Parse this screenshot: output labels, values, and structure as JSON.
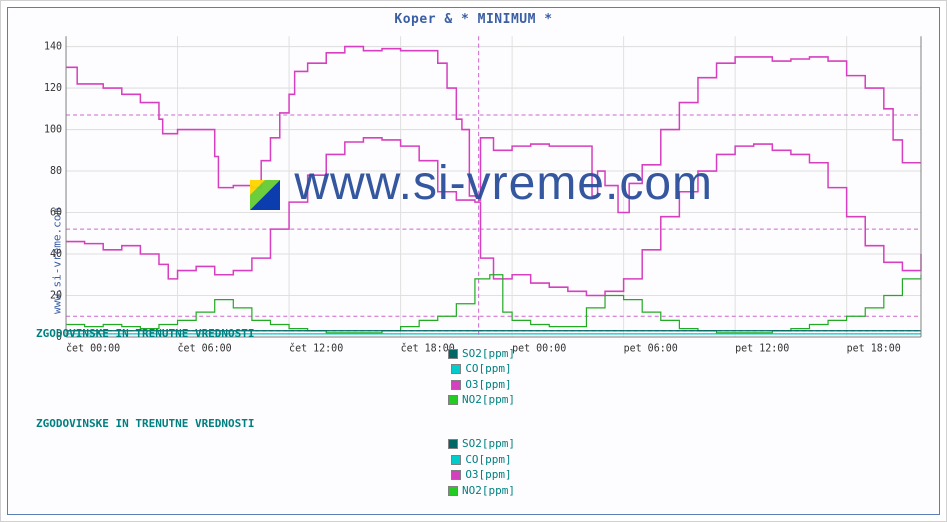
{
  "title": "Koper & * MINIMUM *",
  "yaxis_label": "www.si-vreme.com",
  "watermark": "www.si-vreme.com",
  "chart": {
    "type": "line",
    "background_color": "#ffffff",
    "border_color": "#5a7fb5",
    "grid_color": "#e0e0e0",
    "axis_color": "#808080",
    "ylim": [
      0,
      145
    ],
    "yticks": [
      0,
      20,
      40,
      60,
      80,
      100,
      120,
      140
    ],
    "xlim": [
      0,
      46
    ],
    "xticks": [
      {
        "pos": 0,
        "label": "čet 00:00"
      },
      {
        "pos": 6,
        "label": "čet 06:00"
      },
      {
        "pos": 12,
        "label": "čet 12:00"
      },
      {
        "pos": 18,
        "label": "čet 18:00"
      },
      {
        "pos": 24,
        "label": "pet 00:00"
      },
      {
        "pos": 30,
        "label": "pet 06:00"
      },
      {
        "pos": 36,
        "label": "pet 12:00"
      },
      {
        "pos": 42,
        "label": "pet 18:00"
      }
    ],
    "thresholds": [
      {
        "y": 107,
        "color": "#cc66cc",
        "dash": "4,3"
      },
      {
        "y": 52,
        "color": "#cc66cc",
        "dash": "4,3"
      },
      {
        "y": 10,
        "color": "#cc66cc",
        "dash": "4,3"
      },
      {
        "y": 3,
        "color": "#008080",
        "dash": "4,3"
      },
      {
        "y": 1.5,
        "color": "#00aaaa",
        "dash": "2,2"
      }
    ],
    "vline": {
      "x": 22.2,
      "color": "#cc66cc",
      "dash": "4,3"
    },
    "series": [
      {
        "name": "O3_upper",
        "color": "#d63fbf",
        "width": 1.5,
        "data": [
          [
            0,
            130
          ],
          [
            0.6,
            122
          ],
          [
            1,
            122
          ],
          [
            2,
            120
          ],
          [
            3,
            117
          ],
          [
            4,
            113
          ],
          [
            5,
            105
          ],
          [
            5.2,
            98
          ],
          [
            6,
            100
          ],
          [
            7,
            100
          ],
          [
            8,
            87
          ],
          [
            8.2,
            72
          ],
          [
            9,
            73
          ],
          [
            10,
            72
          ],
          [
            10.5,
            85
          ],
          [
            11,
            96
          ],
          [
            11.5,
            108
          ],
          [
            12,
            117
          ],
          [
            12.3,
            128
          ],
          [
            13,
            132
          ],
          [
            14,
            137
          ],
          [
            15,
            140
          ],
          [
            16,
            138
          ],
          [
            17,
            139
          ],
          [
            18,
            138
          ],
          [
            19,
            138
          ],
          [
            20,
            132
          ],
          [
            20.5,
            120
          ],
          [
            21,
            105
          ],
          [
            21.3,
            100
          ],
          [
            21.7,
            68
          ],
          [
            22.2,
            66
          ],
          [
            22.3,
            96
          ],
          [
            23,
            90
          ],
          [
            24,
            92
          ],
          [
            25,
            93
          ],
          [
            26,
            92
          ],
          [
            27,
            92
          ],
          [
            28,
            92
          ],
          [
            28.3,
            68
          ],
          [
            28.6,
            80
          ],
          [
            29,
            73
          ],
          [
            29.7,
            60
          ],
          [
            30.3,
            74
          ],
          [
            31,
            83
          ],
          [
            32,
            100
          ],
          [
            33,
            113
          ],
          [
            34,
            125
          ],
          [
            35,
            132
          ],
          [
            36,
            135
          ],
          [
            37,
            135
          ],
          [
            38,
            133
          ],
          [
            39,
            134
          ],
          [
            40,
            135
          ],
          [
            41,
            133
          ],
          [
            42,
            126
          ],
          [
            43,
            120
          ],
          [
            44,
            110
          ],
          [
            44.5,
            95
          ],
          [
            45,
            84
          ],
          [
            46,
            84
          ]
        ]
      },
      {
        "name": "O3_lower",
        "color": "#d63fbf",
        "width": 1.5,
        "data": [
          [
            0,
            46
          ],
          [
            1,
            45
          ],
          [
            2,
            42
          ],
          [
            3,
            44
          ],
          [
            4,
            40
          ],
          [
            5,
            35
          ],
          [
            5.5,
            28
          ],
          [
            6,
            32
          ],
          [
            7,
            34
          ],
          [
            8,
            30
          ],
          [
            9,
            32
          ],
          [
            10,
            38
          ],
          [
            11,
            52
          ],
          [
            12,
            65
          ],
          [
            13,
            78
          ],
          [
            14,
            88
          ],
          [
            15,
            94
          ],
          [
            16,
            96
          ],
          [
            17,
            95
          ],
          [
            18,
            92
          ],
          [
            19,
            85
          ],
          [
            20,
            70
          ],
          [
            21,
            66
          ],
          [
            22,
            65
          ],
          [
            22.3,
            38
          ],
          [
            23,
            28
          ],
          [
            24,
            30
          ],
          [
            25,
            26
          ],
          [
            26,
            24
          ],
          [
            27,
            22
          ],
          [
            28,
            20
          ],
          [
            29,
            22
          ],
          [
            30,
            28
          ],
          [
            31,
            42
          ],
          [
            32,
            58
          ],
          [
            33,
            70
          ],
          [
            34,
            80
          ],
          [
            35,
            88
          ],
          [
            36,
            92
          ],
          [
            37,
            93
          ],
          [
            38,
            90
          ],
          [
            39,
            88
          ],
          [
            40,
            84
          ],
          [
            41,
            72
          ],
          [
            42,
            58
          ],
          [
            43,
            44
          ],
          [
            44,
            36
          ],
          [
            45,
            32
          ],
          [
            46,
            40
          ]
        ]
      },
      {
        "name": "NO2",
        "color": "#22aa22",
        "width": 1.2,
        "data": [
          [
            0,
            6
          ],
          [
            1,
            5
          ],
          [
            2,
            6
          ],
          [
            3,
            5
          ],
          [
            4,
            4
          ],
          [
            5,
            6
          ],
          [
            6,
            8
          ],
          [
            7,
            12
          ],
          [
            8,
            18
          ],
          [
            9,
            14
          ],
          [
            10,
            8
          ],
          [
            11,
            6
          ],
          [
            12,
            4
          ],
          [
            13,
            3
          ],
          [
            14,
            2
          ],
          [
            15,
            2
          ],
          [
            16,
            2
          ],
          [
            17,
            3
          ],
          [
            18,
            5
          ],
          [
            19,
            8
          ],
          [
            20,
            10
          ],
          [
            21,
            16
          ],
          [
            22,
            28
          ],
          [
            22.8,
            30
          ],
          [
            23.5,
            12
          ],
          [
            24,
            8
          ],
          [
            25,
            6
          ],
          [
            26,
            5
          ],
          [
            27,
            5
          ],
          [
            28,
            14
          ],
          [
            29,
            20
          ],
          [
            30,
            18
          ],
          [
            31,
            12
          ],
          [
            32,
            8
          ],
          [
            33,
            4
          ],
          [
            34,
            3
          ],
          [
            35,
            2
          ],
          [
            36,
            2
          ],
          [
            37,
            2
          ],
          [
            38,
            3
          ],
          [
            39,
            4
          ],
          [
            40,
            6
          ],
          [
            41,
            8
          ],
          [
            42,
            10
          ],
          [
            43,
            14
          ],
          [
            44,
            20
          ],
          [
            45,
            28
          ],
          [
            46,
            30
          ]
        ]
      },
      {
        "name": "SO2",
        "color": "#006666",
        "width": 1.2,
        "data": [
          [
            0,
            3
          ],
          [
            4,
            3
          ],
          [
            8,
            3
          ],
          [
            12,
            3
          ],
          [
            16,
            3
          ],
          [
            20,
            3
          ],
          [
            24,
            3
          ],
          [
            28,
            3
          ],
          [
            32,
            3
          ],
          [
            36,
            3
          ],
          [
            40,
            3
          ],
          [
            44,
            3
          ],
          [
            46,
            3
          ]
        ]
      },
      {
        "name": "CO",
        "color": "#00cccc",
        "width": 1.2,
        "data": [
          [
            0,
            1.5
          ],
          [
            4,
            1.5
          ],
          [
            8,
            1.5
          ],
          [
            12,
            1.5
          ],
          [
            16,
            1.5
          ],
          [
            20,
            1.5
          ],
          [
            24,
            1.5
          ],
          [
            28,
            1.5
          ],
          [
            32,
            1.5
          ],
          [
            36,
            1.5
          ],
          [
            40,
            1.5
          ],
          [
            44,
            1.5
          ],
          [
            46,
            1.5
          ]
        ]
      }
    ]
  },
  "legends": [
    {
      "title": "ZGODOVINSKE IN TRENUTNE VREDNOSTI",
      "items": [
        {
          "swatch": "#006666",
          "label": "SO2[ppm]"
        },
        {
          "swatch": "#00cccc",
          "label": "CO[ppm]"
        },
        {
          "swatch": "#d63fbf",
          "label": "O3[ppm]"
        },
        {
          "swatch": "#22cc22",
          "label": "NO2[ppm]"
        }
      ]
    },
    {
      "title": "ZGODOVINSKE IN TRENUTNE VREDNOSTI",
      "items": [
        {
          "swatch": "#006666",
          "label": "SO2[ppm]"
        },
        {
          "swatch": "#00cccc",
          "label": "CO[ppm]"
        },
        {
          "swatch": "#d63fbf",
          "label": "O3[ppm]"
        },
        {
          "swatch": "#22cc22",
          "label": "NO2[ppm]"
        }
      ]
    }
  ],
  "logo_colors": {
    "a": "#ffd400",
    "b": "#66cc33",
    "c": "#0033aa"
  }
}
